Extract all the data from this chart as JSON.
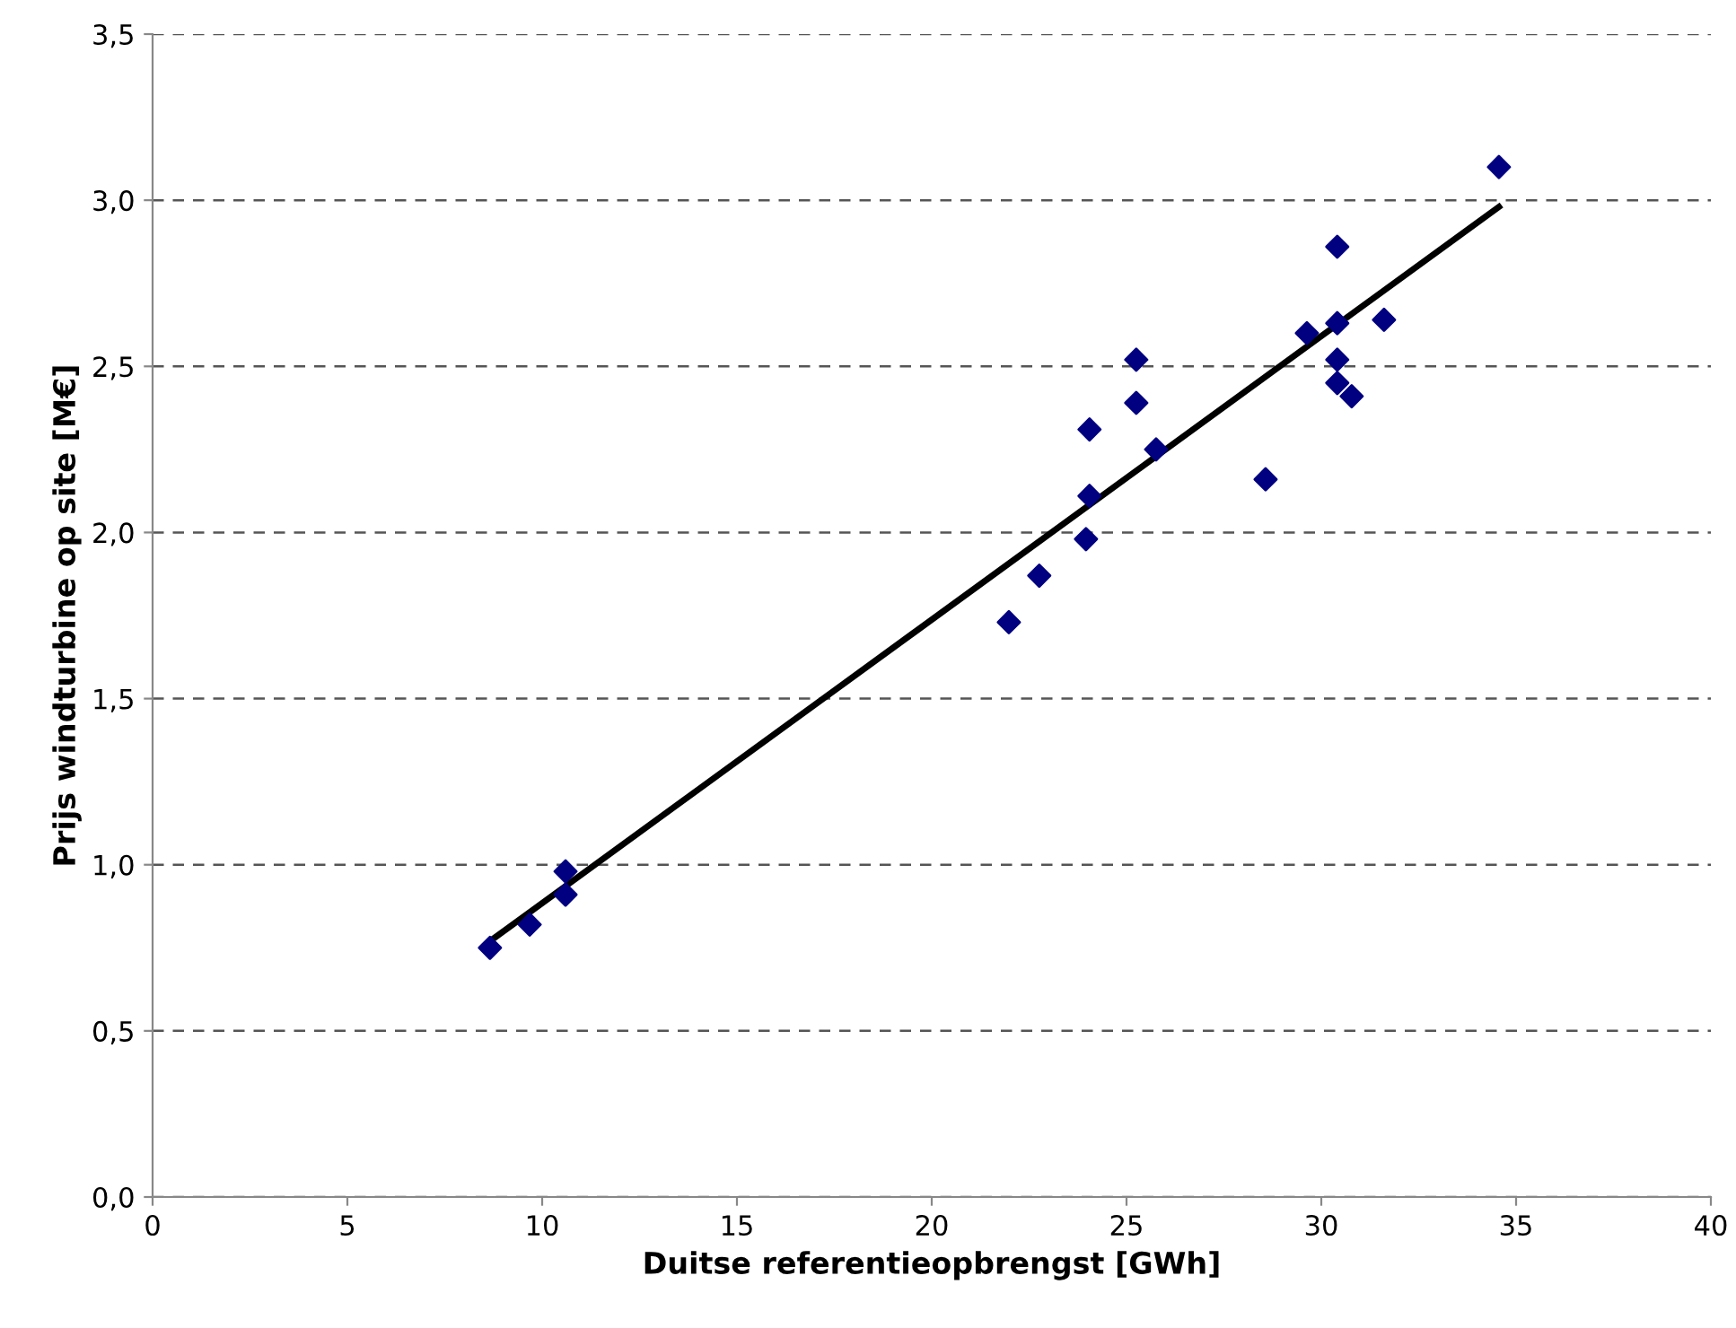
{
  "chart_data": {
    "type": "scatter",
    "xlabel": "Duitse referentieopbrengst [GWh]",
    "ylabel": "Prijs windturbine op site [M€]",
    "series": [
      {
        "color": "#000080",
        "marker": "diamond",
        "x": [
          8.66,
          9.68,
          10.6,
          10.6,
          21.98,
          22.76,
          23.96,
          24.05,
          24.05,
          25.25,
          25.25,
          25.76,
          28.57,
          29.63,
          30.41,
          30.41,
          31.61,
          30.41,
          30.41,
          30.78,
          34.56
        ],
        "values": [
          0.75,
          0.82,
          0.98,
          0.91,
          1.73,
          1.87,
          1.98,
          2.11,
          2.31,
          2.39,
          2.52,
          2.25,
          2.16,
          2.6,
          2.86,
          2.63,
          2.64,
          2.52,
          2.45,
          2.41,
          3.1
        ]
      },
      {
        "type": "line",
        "color": "#000000",
        "marker": "none",
        "x": [
          8.66,
          34.56
        ],
        "values": [
          0.77,
          2.98
        ]
      }
    ],
    "xlim": [
      0,
      40
    ],
    "ylim": [
      0,
      3.5
    ],
    "xticks": [
      0,
      5,
      10,
      15,
      20,
      25,
      30,
      35,
      40
    ],
    "yticks": [
      {
        "value": 0,
        "label": "0,0"
      },
      {
        "value": 0.5,
        "label": "0,5"
      },
      {
        "value": 1,
        "label": "1,0"
      },
      {
        "value": 1.5,
        "label": "1,5"
      },
      {
        "value": 2,
        "label": "2,0"
      },
      {
        "value": 2.5,
        "label": "2,5"
      },
      {
        "value": 3,
        "label": "3,0"
      },
      {
        "value": 3.5,
        "label": "3,5"
      }
    ],
    "grid": "y",
    "legend": false
  }
}
